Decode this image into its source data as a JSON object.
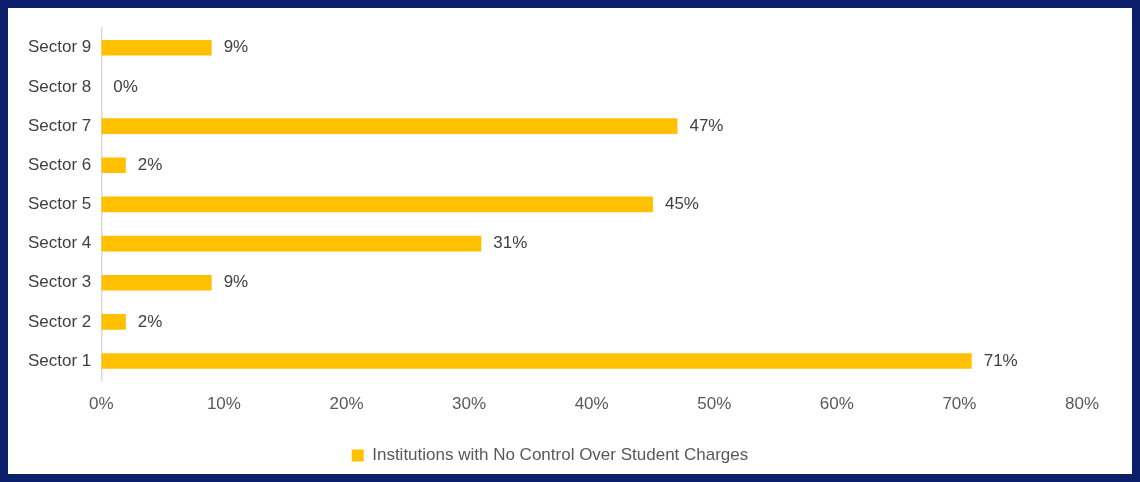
{
  "chart_data": {
    "type": "bar",
    "orientation": "horizontal",
    "categories": [
      "Sector 9",
      "Sector 8",
      "Sector 7",
      "Sector 6",
      "Sector 5",
      "Sector 4",
      "Sector 3",
      "Sector 2",
      "Sector 1"
    ],
    "series": [
      {
        "name": "Institutions with No Control Over Student Charges",
        "color": "#ffc000",
        "values": [
          9,
          0,
          47,
          2,
          45,
          31,
          9,
          2,
          71
        ],
        "value_labels": [
          "9%",
          "0%",
          "47%",
          "2%",
          "45%",
          "31%",
          "9%",
          "2%",
          "71%"
        ]
      }
    ],
    "xlim": [
      0,
      80
    ],
    "xticks": [
      {
        "value": 0,
        "label": "0%"
      },
      {
        "value": 10,
        "label": "10%"
      },
      {
        "value": 20,
        "label": "20%"
      },
      {
        "value": 30,
        "label": "30%"
      },
      {
        "value": 40,
        "label": "40%"
      },
      {
        "value": 50,
        "label": "50%"
      },
      {
        "value": 60,
        "label": "60%"
      },
      {
        "value": 70,
        "label": "70%"
      },
      {
        "value": 80,
        "label": "80%"
      }
    ],
    "grid": false,
    "legend": "bottom"
  }
}
